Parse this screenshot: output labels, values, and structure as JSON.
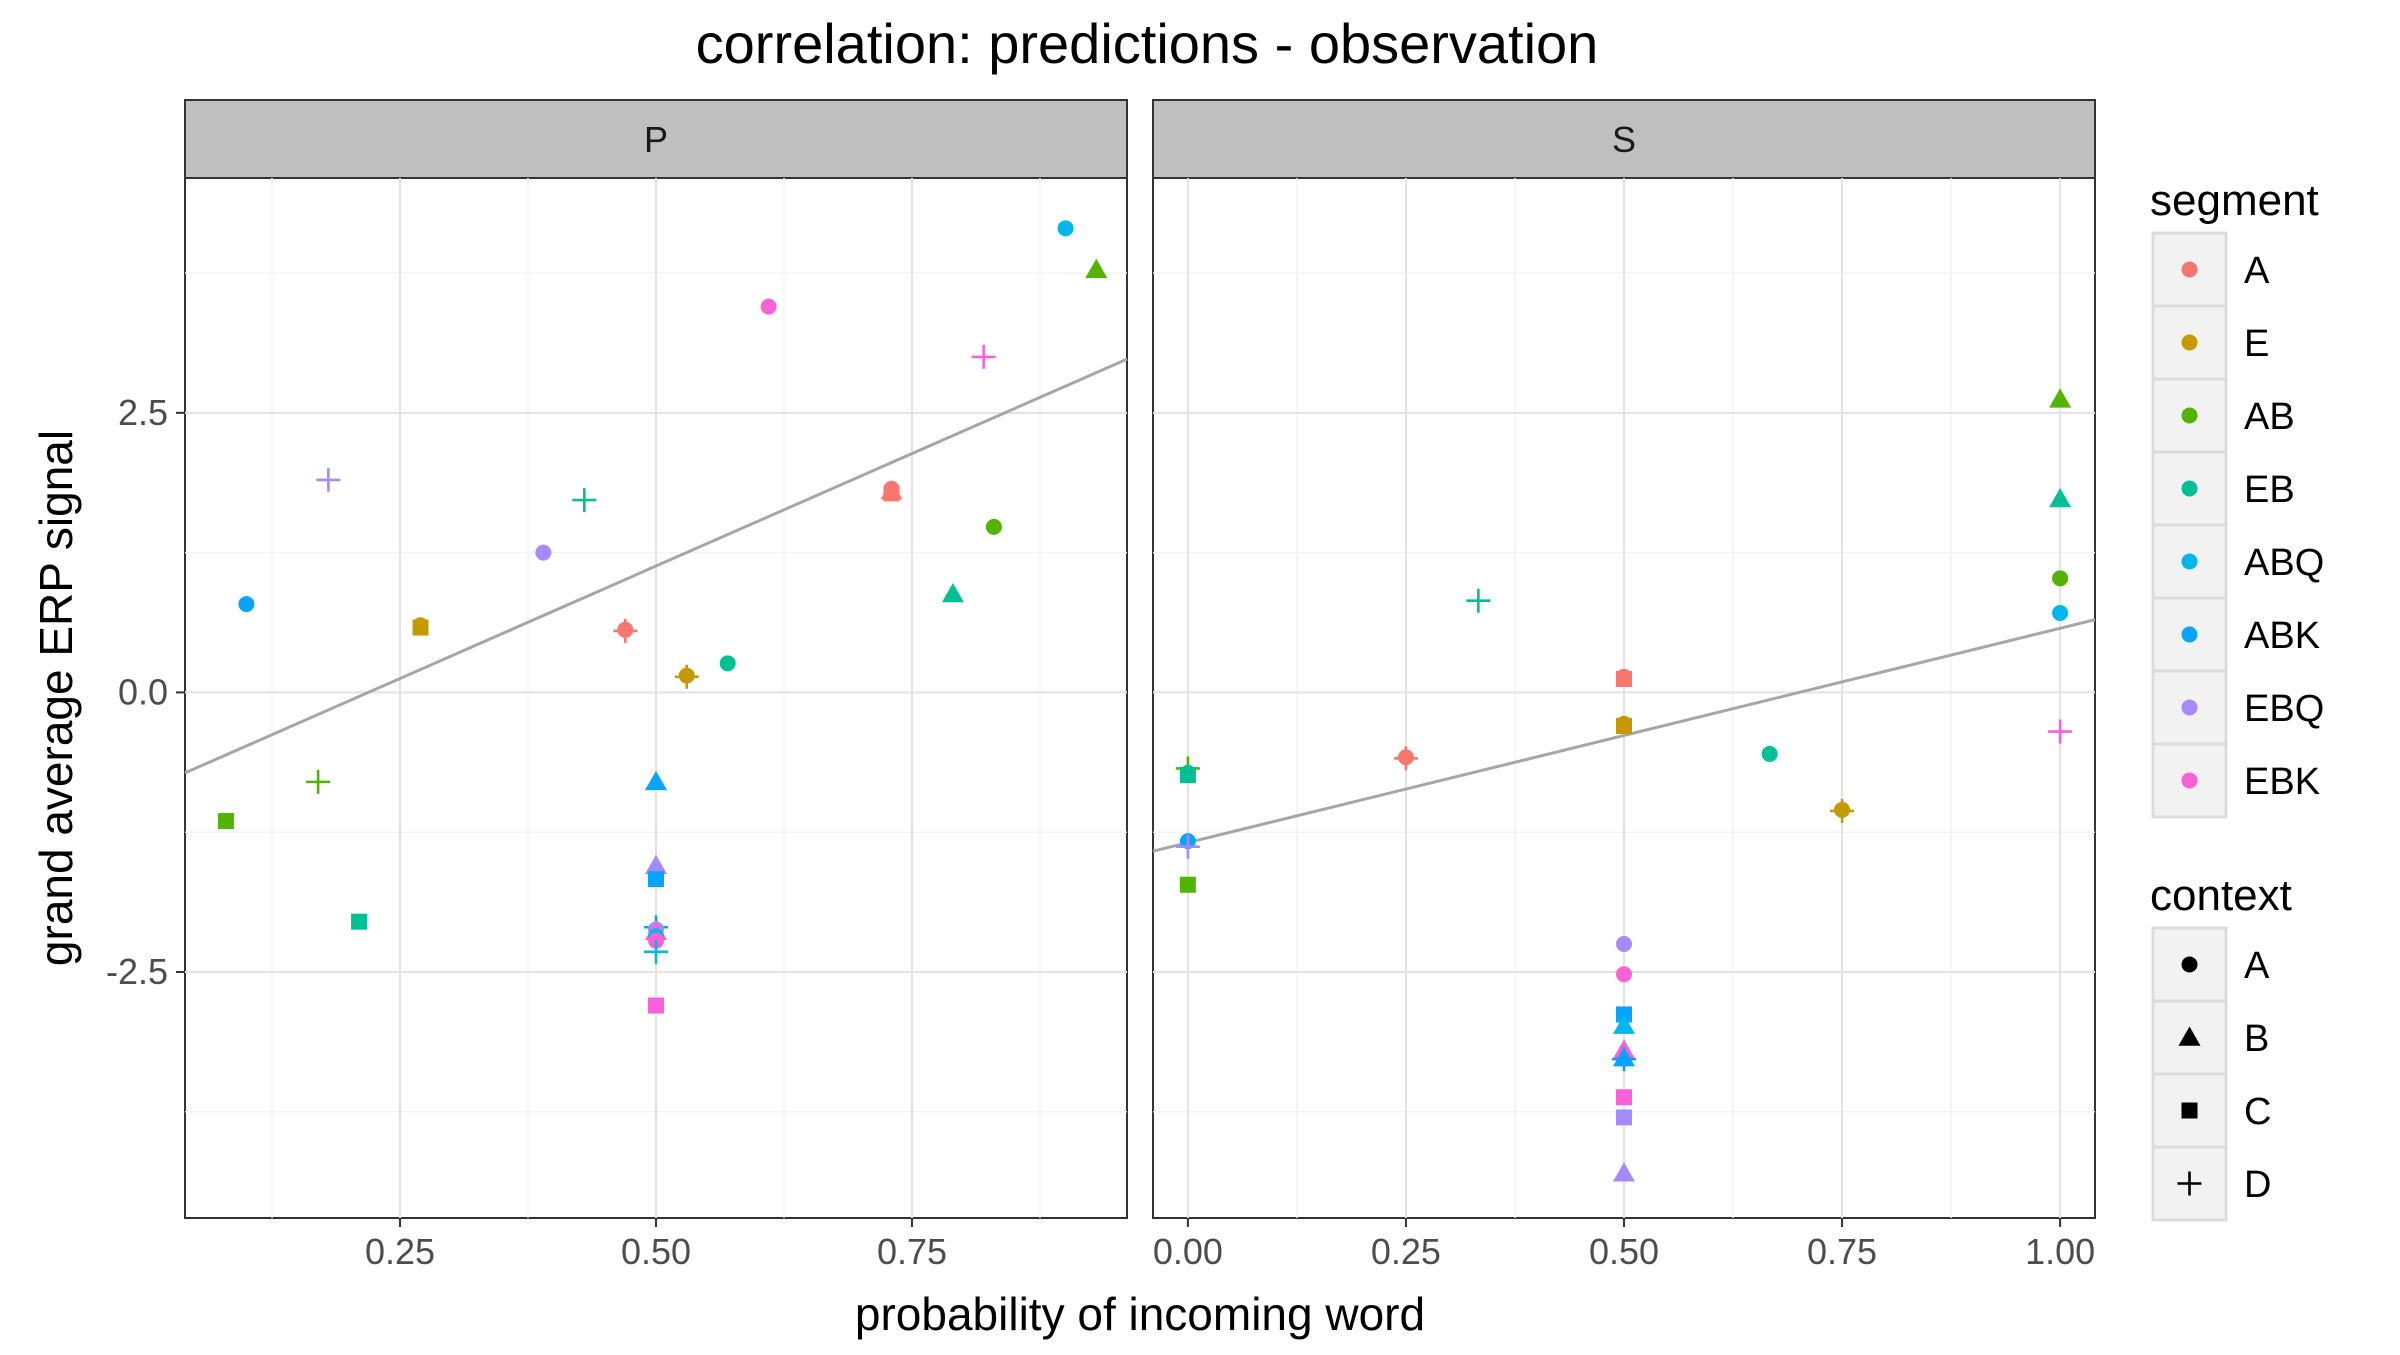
{
  "chart_data": {
    "type": "scatter",
    "title": "correlation: predictions - observation",
    "xlabel": "probability of incoming word",
    "ylabel": "grand average ERP signal",
    "yticks": [
      {
        "value": 2.5,
        "label": "2.5"
      },
      {
        "value": 0.0,
        "label": "0.0"
      },
      {
        "value": -2.5,
        "label": "-2.5"
      }
    ],
    "ylim": [
      -4.7,
      4.6
    ],
    "grid": true,
    "legend_position": "right",
    "segment_legend": {
      "title": "segment",
      "items": [
        {
          "label": "A",
          "color": "#F8766D"
        },
        {
          "label": "E",
          "color": "#C49A00"
        },
        {
          "label": "AB",
          "color": "#53B400"
        },
        {
          "label": "EB",
          "color": "#00C094"
        },
        {
          "label": "ABQ",
          "color": "#00B6EB"
        },
        {
          "label": "ABK",
          "color": "#06A4FF"
        },
        {
          "label": "EBQ",
          "color": "#A58AFF"
        },
        {
          "label": "EBK",
          "color": "#FB61D7"
        }
      ]
    },
    "context_legend": {
      "title": "context",
      "items": [
        {
          "label": "A",
          "shape": "circle"
        },
        {
          "label": "B",
          "shape": "triangle"
        },
        {
          "label": "C",
          "shape": "square"
        },
        {
          "label": "D",
          "shape": "plus"
        }
      ]
    },
    "panels": [
      {
        "name": "P",
        "xlim": [
          0.04,
          0.96
        ],
        "xticks": [
          {
            "value": 0.25,
            "label": "0.25"
          },
          {
            "value": 0.5,
            "label": "0.50"
          },
          {
            "value": 0.75,
            "label": "0.75"
          }
        ],
        "fit_line": {
          "x": [
            0.04,
            0.96
          ],
          "y": [
            -0.72,
            2.98
          ]
        },
        "points": [
          {
            "x": 0.9,
            "y": 4.15,
            "segment": "ABQ",
            "context": "A"
          },
          {
            "x": 0.93,
            "y": 3.78,
            "segment": "AB",
            "context": "B"
          },
          {
            "x": 0.61,
            "y": 3.45,
            "segment": "EBK",
            "context": "A"
          },
          {
            "x": 0.82,
            "y": 3.0,
            "segment": "EBK",
            "context": "D"
          },
          {
            "x": 0.18,
            "y": 1.9,
            "segment": "EBQ",
            "context": "D"
          },
          {
            "x": 0.73,
            "y": 1.82,
            "segment": "A",
            "context": "A"
          },
          {
            "x": 0.73,
            "y": 1.8,
            "segment": "A",
            "context": "B"
          },
          {
            "x": 0.73,
            "y": 1.78,
            "segment": "A",
            "context": "C"
          },
          {
            "x": 0.43,
            "y": 1.72,
            "segment": "EB",
            "context": "D"
          },
          {
            "x": 0.83,
            "y": 1.48,
            "segment": "AB",
            "context": "A"
          },
          {
            "x": 0.39,
            "y": 1.25,
            "segment": "EBQ",
            "context": "A"
          },
          {
            "x": 0.79,
            "y": 0.88,
            "segment": "EB",
            "context": "B"
          },
          {
            "x": 0.1,
            "y": 0.79,
            "segment": "ABK",
            "context": "A"
          },
          {
            "x": 0.27,
            "y": 0.6,
            "segment": "E",
            "context": "A"
          },
          {
            "x": 0.27,
            "y": 0.58,
            "segment": "E",
            "context": "C"
          },
          {
            "x": 0.47,
            "y": 0.56,
            "segment": "A",
            "context": "A"
          },
          {
            "x": 0.47,
            "y": 0.55,
            "segment": "A",
            "context": "D"
          },
          {
            "x": 0.57,
            "y": 0.26,
            "segment": "EB",
            "context": "A"
          },
          {
            "x": 0.53,
            "y": 0.15,
            "segment": "E",
            "context": "A"
          },
          {
            "x": 0.53,
            "y": 0.14,
            "segment": "E",
            "context": "D"
          },
          {
            "x": 0.17,
            "y": -0.8,
            "segment": "AB",
            "context": "D"
          },
          {
            "x": 0.5,
            "y": -0.8,
            "segment": "ABK",
            "context": "B"
          },
          {
            "x": 0.08,
            "y": -1.15,
            "segment": "AB",
            "context": "C"
          },
          {
            "x": 0.5,
            "y": -1.55,
            "segment": "EBQ",
            "context": "B"
          },
          {
            "x": 0.5,
            "y": -1.67,
            "segment": "ABK",
            "context": "C"
          },
          {
            "x": 0.21,
            "y": -2.05,
            "segment": "EB",
            "context": "C"
          },
          {
            "x": 0.5,
            "y": -2.1,
            "segment": "ABK",
            "context": "D"
          },
          {
            "x": 0.5,
            "y": -2.12,
            "segment": "EBQ",
            "context": "A"
          },
          {
            "x": 0.5,
            "y": -2.14,
            "segment": "EBK",
            "context": "B"
          },
          {
            "x": 0.5,
            "y": -2.18,
            "segment": "ABQ",
            "context": "A"
          },
          {
            "x": 0.5,
            "y": -2.22,
            "segment": "EBK",
            "context": "A"
          },
          {
            "x": 0.5,
            "y": -2.32,
            "segment": "ABQ",
            "context": "D"
          },
          {
            "x": 0.5,
            "y": -2.8,
            "segment": "EBK",
            "context": "C"
          }
        ]
      },
      {
        "name": "S",
        "xlim": [
          -0.04,
          1.04
        ],
        "xticks": [
          {
            "value": 0.0,
            "label": "0.00"
          },
          {
            "value": 0.25,
            "label": "0.25"
          },
          {
            "value": 0.5,
            "label": "0.50"
          },
          {
            "value": 0.75,
            "label": "0.75"
          },
          {
            "value": 1.0,
            "label": "1.00"
          }
        ],
        "fit_line": {
          "x": [
            -0.04,
            1.04
          ],
          "y": [
            -1.42,
            0.65
          ]
        },
        "points": [
          {
            "x": 1.0,
            "y": 2.62,
            "segment": "AB",
            "context": "B"
          },
          {
            "x": 1.0,
            "y": 1.73,
            "segment": "EB",
            "context": "B"
          },
          {
            "x": 1.0,
            "y": 1.02,
            "segment": "AB",
            "context": "A"
          },
          {
            "x": 0.333,
            "y": 0.82,
            "segment": "EB",
            "context": "D"
          },
          {
            "x": 1.0,
            "y": 0.71,
            "segment": "ABQ",
            "context": "A"
          },
          {
            "x": 1.0,
            "y": -0.35,
            "segment": "EBK",
            "context": "D"
          },
          {
            "x": 0.5,
            "y": 0.14,
            "segment": "A",
            "context": "A"
          },
          {
            "x": 0.5,
            "y": 0.12,
            "segment": "A",
            "context": "C"
          },
          {
            "x": 0.5,
            "y": -0.28,
            "segment": "E",
            "context": "A"
          },
          {
            "x": 0.5,
            "y": -0.3,
            "segment": "E",
            "context": "C"
          },
          {
            "x": 0.667,
            "y": -0.55,
            "segment": "EB",
            "context": "A"
          },
          {
            "x": 0.25,
            "y": -0.58,
            "segment": "A",
            "context": "A"
          },
          {
            "x": 0.25,
            "y": -0.59,
            "segment": "A",
            "context": "D"
          },
          {
            "x": 0.0,
            "y": -0.68,
            "segment": "AB",
            "context": "D"
          },
          {
            "x": 0.0,
            "y": -0.72,
            "segment": "EB",
            "context": "A"
          },
          {
            "x": 0.0,
            "y": -0.74,
            "segment": "EB",
            "context": "C"
          },
          {
            "x": 0.75,
            "y": -1.05,
            "segment": "E",
            "context": "A"
          },
          {
            "x": 0.75,
            "y": -1.06,
            "segment": "E",
            "context": "D"
          },
          {
            "x": 0.0,
            "y": -1.33,
            "segment": "ABK",
            "context": "A"
          },
          {
            "x": 0.0,
            "y": -1.38,
            "segment": "EBQ",
            "context": "D"
          },
          {
            "x": 0.0,
            "y": -1.72,
            "segment": "AB",
            "context": "C"
          },
          {
            "x": 0.5,
            "y": -2.25,
            "segment": "EBQ",
            "context": "A"
          },
          {
            "x": 0.5,
            "y": -2.52,
            "segment": "EBK",
            "context": "A"
          },
          {
            "x": 0.5,
            "y": -2.88,
            "segment": "ABK",
            "context": "C"
          },
          {
            "x": 0.5,
            "y": -2.98,
            "segment": "ABQ",
            "context": "B"
          },
          {
            "x": 0.5,
            "y": -3.2,
            "segment": "EBK",
            "context": "B"
          },
          {
            "x": 0.5,
            "y": -3.27,
            "segment": "ABK",
            "context": "B"
          },
          {
            "x": 0.5,
            "y": -3.28,
            "segment": "ABK",
            "context": "D"
          },
          {
            "x": 0.5,
            "y": -3.62,
            "segment": "EBK",
            "context": "C"
          },
          {
            "x": 0.5,
            "y": -3.8,
            "segment": "EBQ",
            "context": "C"
          },
          {
            "x": 0.5,
            "y": -4.3,
            "segment": "EBQ",
            "context": "B"
          }
        ]
      }
    ]
  }
}
